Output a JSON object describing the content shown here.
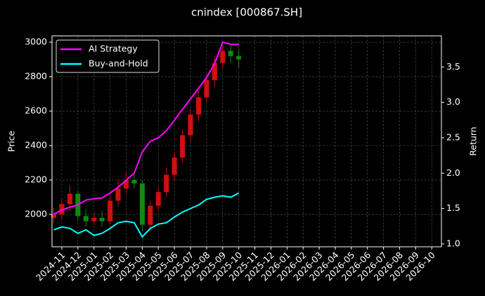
{
  "chart_data": {
    "type": "candlestick",
    "title": "cnindex [000867.SH]",
    "ylabel": "Price",
    "y2label": "Return",
    "x": [
      -0.5,
      0,
      0.5,
      1.0,
      1.5,
      2.0,
      2.5,
      3.0,
      3.5,
      4.0,
      4.5,
      5.0,
      5.5,
      6.0,
      6.5,
      7.0,
      7.5,
      8.0,
      8.5,
      9.0,
      9.5,
      10.0,
      10.5,
      11.0
    ],
    "open": [
      1980,
      2000,
      2060,
      2120,
      1990,
      1960,
      1980,
      1960,
      2080,
      2150,
      2200,
      2180,
      1940,
      2050,
      2130,
      2230,
      2330,
      2460,
      2580,
      2680,
      2780,
      2880,
      2950,
      2920
    ],
    "high": [
      2040,
      2090,
      2170,
      2140,
      2030,
      2010,
      2020,
      2110,
      2200,
      2250,
      2240,
      2200,
      2080,
      2160,
      2270,
      2360,
      2490,
      2610,
      2720,
      2820,
      2920,
      2980,
      2980,
      2960
    ],
    "low": [
      1950,
      1970,
      2020,
      1960,
      1930,
      1940,
      1930,
      1940,
      2050,
      2120,
      2150,
      1900,
      1910,
      2020,
      2100,
      2200,
      2300,
      2420,
      2540,
      2650,
      2740,
      2850,
      2880,
      2850
    ],
    "close": [
      2000,
      2060,
      2120,
      1990,
      1960,
      1980,
      1960,
      2080,
      2150,
      2200,
      2180,
      1940,
      2050,
      2130,
      2230,
      2330,
      2460,
      2580,
      2680,
      2780,
      2880,
      2950,
      2920,
      2900
    ],
    "up_color": "#d01010",
    "down_color": "#108a10",
    "series": [
      {
        "name": "AI Strategy",
        "color": "#ff00ff",
        "axis": "y2",
        "values": [
          1.42,
          1.48,
          1.52,
          1.55,
          1.62,
          1.64,
          1.65,
          1.72,
          1.8,
          1.9,
          2.0,
          2.3,
          2.45,
          2.5,
          2.6,
          2.75,
          2.9,
          3.05,
          3.2,
          3.35,
          3.55,
          3.85,
          3.82,
          3.82
        ]
      },
      {
        "name": "Buy-and-Hold",
        "color": "#00ffff",
        "axis": "y2",
        "values": [
          1.2,
          1.24,
          1.22,
          1.15,
          1.2,
          1.12,
          1.15,
          1.22,
          1.3,
          1.32,
          1.3,
          1.1,
          1.22,
          1.28,
          1.3,
          1.38,
          1.45,
          1.5,
          1.55,
          1.63,
          1.66,
          1.68,
          1.66,
          1.72
        ]
      }
    ],
    "xlim": [
      -0.61,
      23.6
    ],
    "xticks": [
      {
        "value": 0,
        "label": "2024-11"
      },
      {
        "value": 1,
        "label": "2024-12"
      },
      {
        "value": 2,
        "label": "2025-01"
      },
      {
        "value": 3,
        "label": "2025-02"
      },
      {
        "value": 4,
        "label": "2025-03"
      },
      {
        "value": 5,
        "label": "2025-04"
      },
      {
        "value": 6,
        "label": "2025-05"
      },
      {
        "value": 7,
        "label": "2025-06"
      },
      {
        "value": 8,
        "label": "2025-07"
      },
      {
        "value": 9,
        "label": "2025-08"
      },
      {
        "value": 10,
        "label": "2025-09"
      },
      {
        "value": 11,
        "label": "2025-10"
      },
      {
        "value": 12,
        "label": "2025-11"
      },
      {
        "value": 13,
        "label": "2025-12"
      },
      {
        "value": 14,
        "label": "2026-01"
      },
      {
        "value": 15,
        "label": "2026-02"
      },
      {
        "value": 16,
        "label": "2026-03"
      },
      {
        "value": 17,
        "label": "2026-04"
      },
      {
        "value": 18,
        "label": "2026-05"
      },
      {
        "value": 19,
        "label": "2026-06"
      },
      {
        "value": 20,
        "label": "2026-07"
      },
      {
        "value": 21,
        "label": "2026-08"
      },
      {
        "value": 22,
        "label": "2026-09"
      },
      {
        "value": 23,
        "label": "2026-10"
      }
    ],
    "ylim": [
      1812,
      3037
    ],
    "yticks": [
      2000,
      2200,
      2400,
      2600,
      2800,
      3000
    ],
    "y2lim": [
      0.96,
      3.94
    ],
    "y2ticks": [
      {
        "value": 1,
        "label": "1.0"
      },
      1.5,
      {
        "value": 2,
        "label": "2.0"
      },
      2.5,
      {
        "value": 3,
        "label": "3.0"
      },
      3.5
    ],
    "grid": true,
    "legend": "upper left"
  }
}
